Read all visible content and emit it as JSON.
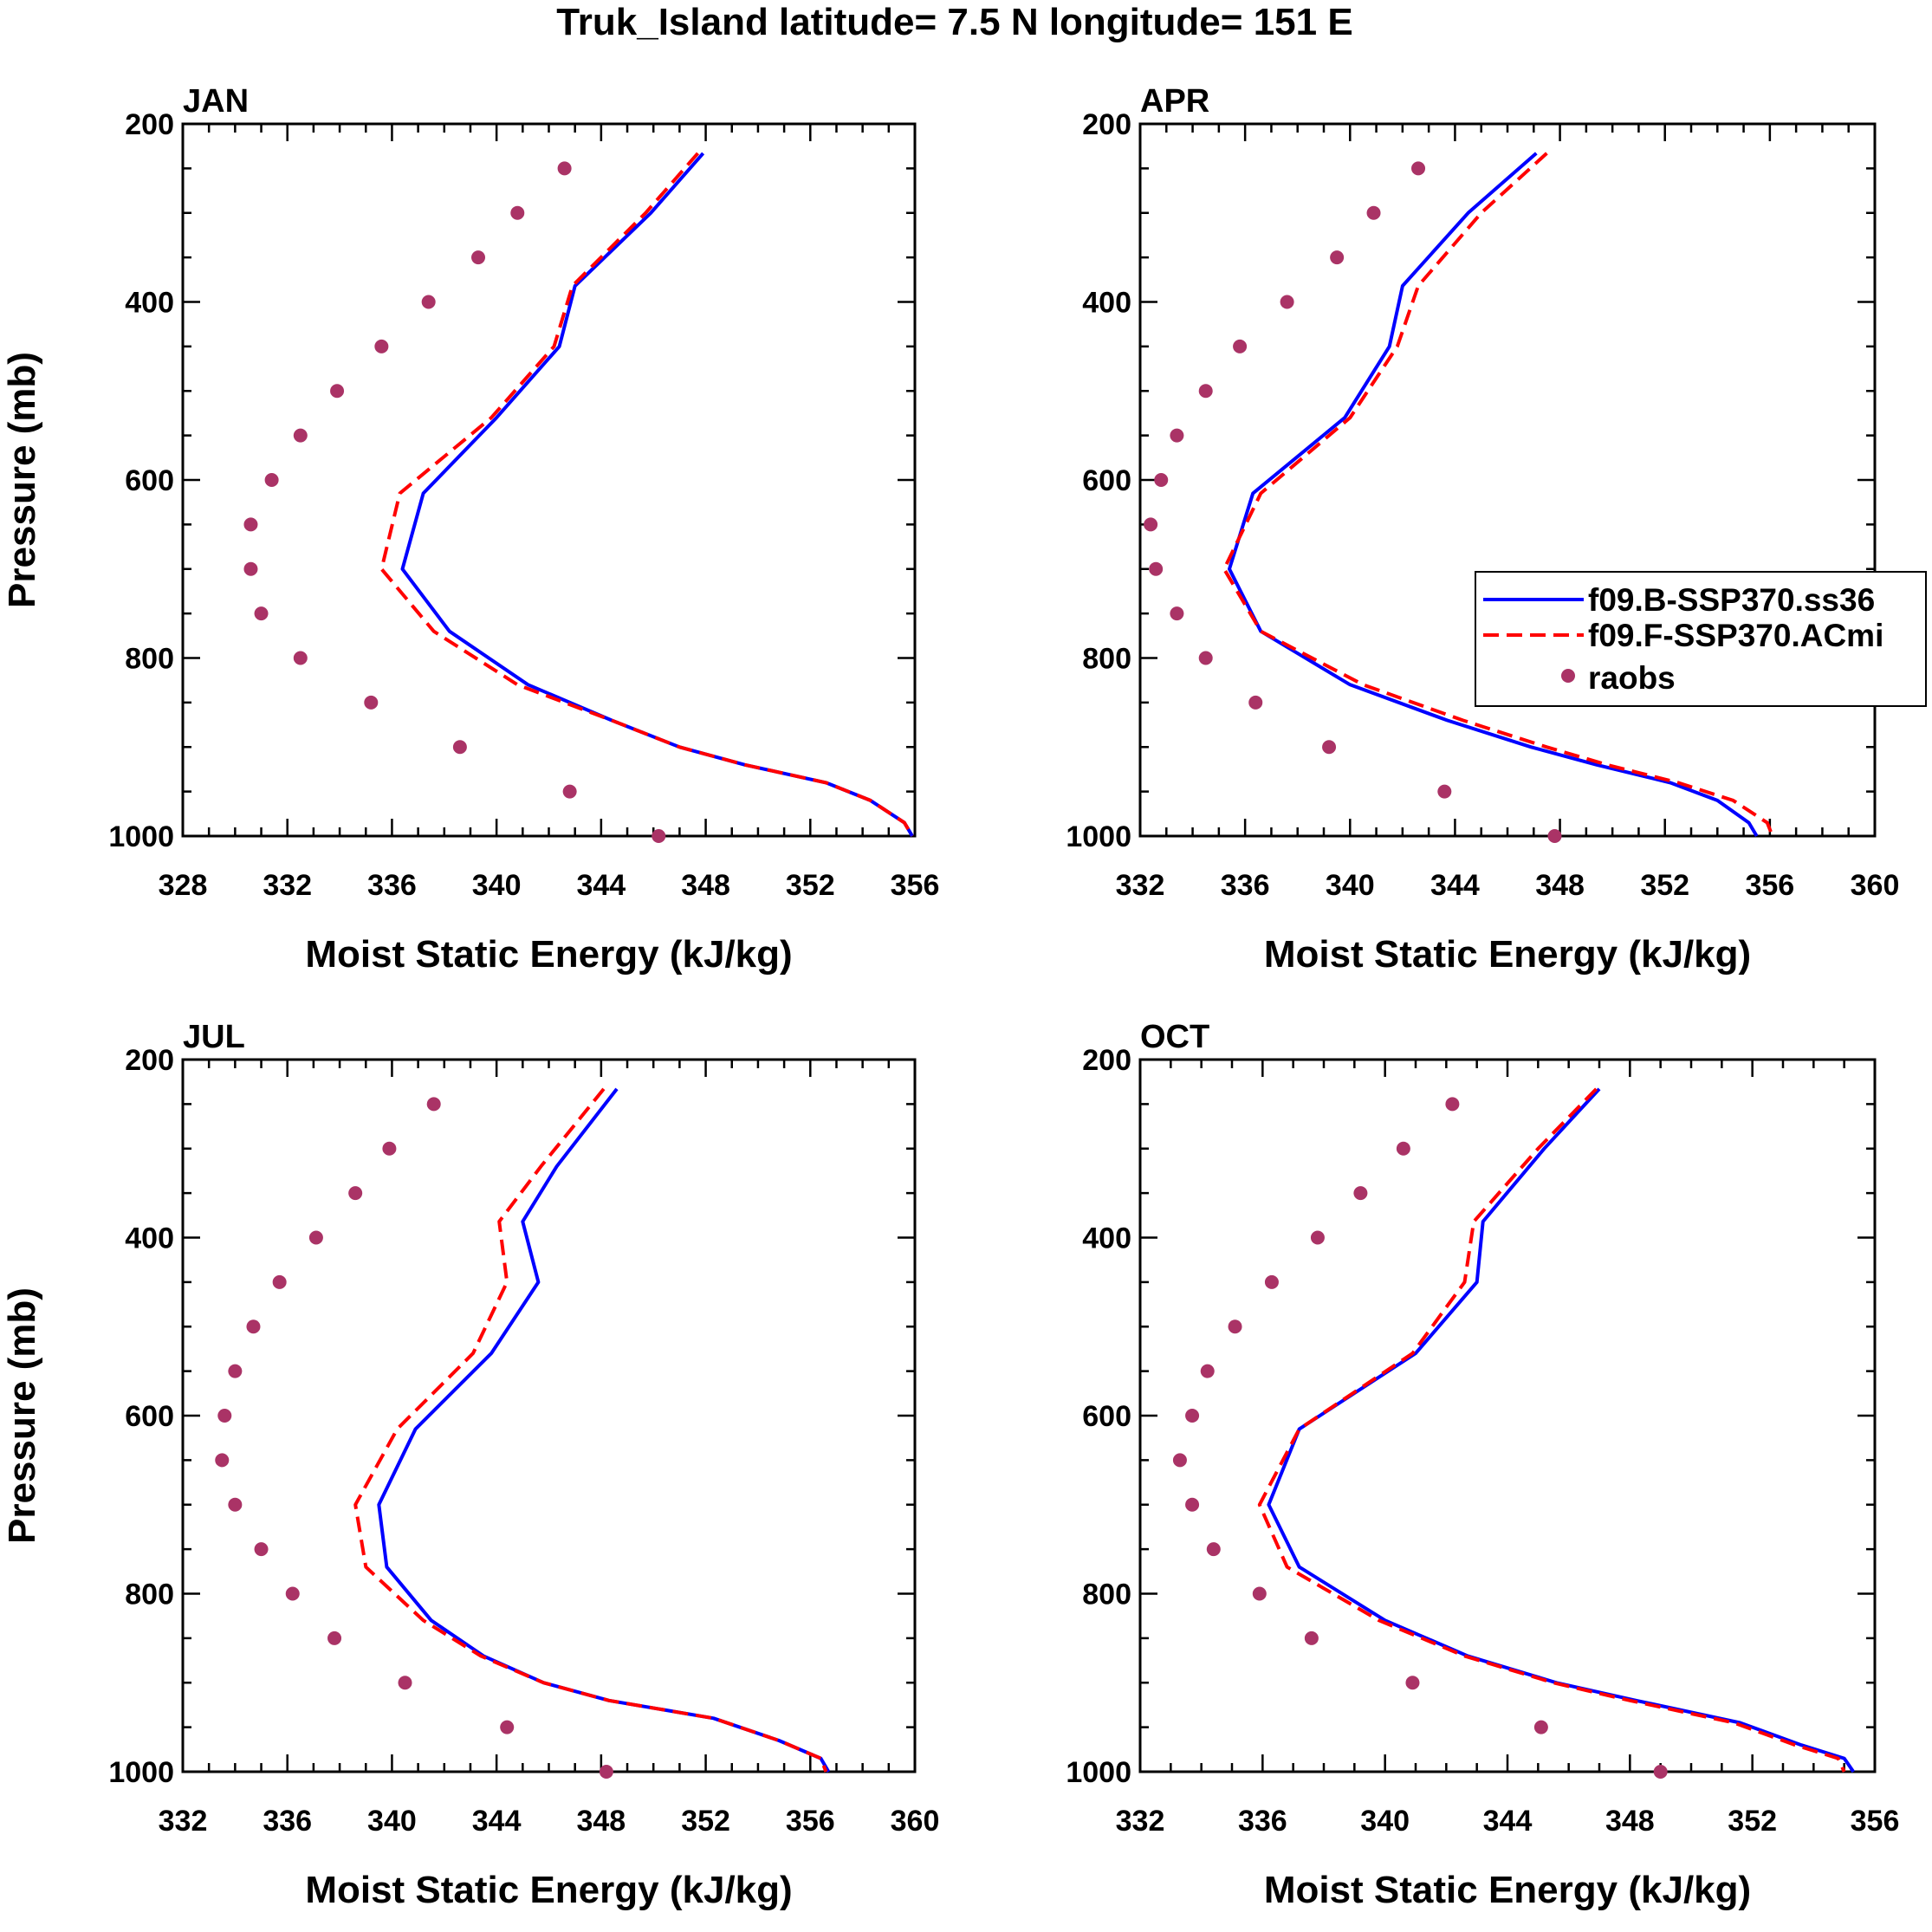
{
  "figure_title": "Truk_Island  latitude= 7.5 N longitude= 151 E",
  "colors": {
    "model_b": "#0000ff",
    "model_f": "#ff0000",
    "raobs": "#aa3366",
    "axis": "#000000"
  },
  "legend": {
    "entries": [
      {
        "label": "f09.B-SSP370.ss36",
        "style": "solid",
        "color": "#0000ff"
      },
      {
        "label": "f09.F-SSP370.ACmi",
        "style": "dashed",
        "color": "#ff0000"
      },
      {
        "label": "raobs",
        "style": "marker",
        "color": "#aa3366"
      }
    ]
  },
  "chart_data": [
    {
      "type": "line",
      "title": "JAN",
      "xlabel": "Moist Static Energy (kJ/kg)",
      "ylabel": "Pressure (mb)",
      "xlim": [
        328,
        356
      ],
      "ylim": [
        200,
        1000
      ],
      "xticks": [
        328,
        332,
        336,
        340,
        344,
        348,
        352,
        356
      ],
      "yticks": [
        200,
        400,
        600,
        800,
        1000
      ],
      "y_inverted": true,
      "series": [
        {
          "name": "f09.B-SSP370.ss36",
          "style": "solid",
          "y": [
            233,
            300,
            382,
            450,
            530,
            615,
            700,
            770,
            830,
            870,
            900,
            920,
            940,
            960,
            985,
            1000
          ],
          "x": [
            347.9,
            345.9,
            343.0,
            342.4,
            340.0,
            337.2,
            336.4,
            338.2,
            341.2,
            344.4,
            347.0,
            349.5,
            352.6,
            354.3,
            355.6,
            355.9
          ]
        },
        {
          "name": "f09.F-SSP370.ACmi",
          "style": "dashed",
          "y": [
            233,
            300,
            382,
            450,
            530,
            615,
            700,
            770,
            830,
            870,
            900,
            920,
            940,
            960,
            985,
            1000
          ],
          "x": [
            347.7,
            345.7,
            342.9,
            342.2,
            339.8,
            336.3,
            335.6,
            337.6,
            340.8,
            344.4,
            347.0,
            349.5,
            352.6,
            354.3,
            355.6,
            355.9
          ]
        },
        {
          "name": "raobs",
          "style": "marker",
          "y": [
            250,
            300,
            350,
            400,
            450,
            500,
            550,
            600,
            650,
            700,
            750,
            800,
            850,
            900,
            950,
            1000
          ],
          "x": [
            342.6,
            340.8,
            339.3,
            337.4,
            335.6,
            333.9,
            332.5,
            331.4,
            330.6,
            330.6,
            331.0,
            332.5,
            335.2,
            338.6,
            342.8,
            346.2
          ]
        }
      ]
    },
    {
      "type": "line",
      "title": "APR",
      "xlabel": "Moist Static Energy (kJ/kg)",
      "ylabel": "",
      "xlim": [
        332,
        360
      ],
      "ylim": [
        200,
        1000
      ],
      "xticks": [
        332,
        336,
        340,
        344,
        348,
        352,
        356,
        360
      ],
      "yticks": [
        200,
        400,
        600,
        800,
        1000
      ],
      "y_inverted": true,
      "series": [
        {
          "name": "f09.B-SSP370.ss36",
          "style": "solid",
          "y": [
            233,
            300,
            382,
            450,
            530,
            615,
            700,
            770,
            830,
            870,
            900,
            920,
            940,
            960,
            985,
            1000
          ],
          "x": [
            347.1,
            344.5,
            342.0,
            341.5,
            339.8,
            336.3,
            335.4,
            336.6,
            340.0,
            343.7,
            346.9,
            349.4,
            352.2,
            354.0,
            355.2,
            355.5
          ]
        },
        {
          "name": "f09.F-SSP370.ACmi",
          "style": "dashed",
          "y": [
            233,
            300,
            382,
            450,
            530,
            615,
            700,
            770,
            830,
            870,
            900,
            920,
            940,
            960,
            985,
            1000
          ],
          "x": [
            347.5,
            345.0,
            342.6,
            341.8,
            340.0,
            336.6,
            335.2,
            336.6,
            340.5,
            344.3,
            347.5,
            349.8,
            352.5,
            354.6,
            355.9,
            356.1
          ]
        },
        {
          "name": "raobs",
          "style": "marker",
          "y": [
            250,
            300,
            350,
            400,
            450,
            500,
            550,
            600,
            650,
            700,
            750,
            800,
            850,
            900,
            950,
            1000
          ],
          "x": [
            342.6,
            340.9,
            339.5,
            337.6,
            335.8,
            334.5,
            333.4,
            332.8,
            332.4,
            332.6,
            333.4,
            334.5,
            336.4,
            339.2,
            343.6,
            347.8
          ]
        }
      ]
    },
    {
      "type": "line",
      "title": "JUL",
      "xlabel": "Moist Static Energy (kJ/kg)",
      "ylabel": "Pressure (mb)",
      "xlim": [
        332,
        360
      ],
      "ylim": [
        200,
        1000
      ],
      "xticks": [
        332,
        336,
        340,
        344,
        348,
        352,
        356,
        360
      ],
      "yticks": [
        200,
        400,
        600,
        800,
        1000
      ],
      "y_inverted": true,
      "series": [
        {
          "name": "f09.B-SSP370.ss36",
          "style": "solid",
          "y": [
            233,
            320,
            382,
            450,
            530,
            615,
            700,
            770,
            830,
            870,
            900,
            920,
            940,
            965,
            985,
            1000
          ],
          "x": [
            348.6,
            346.3,
            345.0,
            345.6,
            343.8,
            340.9,
            339.5,
            339.8,
            341.5,
            343.5,
            345.8,
            348.3,
            352.3,
            354.8,
            356.4,
            356.7
          ]
        },
        {
          "name": "f09.F-SSP370.ACmi",
          "style": "dashed",
          "y": [
            233,
            320,
            382,
            450,
            530,
            615,
            700,
            770,
            830,
            870,
            900,
            920,
            940,
            965,
            985,
            1000
          ],
          "x": [
            348.1,
            345.7,
            344.1,
            344.4,
            343.1,
            340.2,
            338.6,
            339.0,
            341.2,
            343.4,
            345.8,
            348.3,
            352.3,
            354.8,
            356.4,
            356.6
          ]
        },
        {
          "name": "raobs",
          "style": "marker",
          "y": [
            250,
            300,
            350,
            400,
            450,
            500,
            550,
            600,
            650,
            700,
            750,
            800,
            850,
            900,
            950,
            1000
          ],
          "x": [
            341.6,
            339.9,
            338.6,
            337.1,
            335.7,
            334.7,
            334.0,
            333.6,
            333.5,
            334.0,
            335.0,
            336.2,
            337.8,
            340.5,
            344.4,
            348.2
          ]
        }
      ]
    },
    {
      "type": "line",
      "title": "OCT",
      "xlabel": "Moist Static Energy (kJ/kg)",
      "ylabel": "",
      "xlim": [
        332,
        356
      ],
      "ylim": [
        200,
        1000
      ],
      "xticks": [
        332,
        336,
        340,
        344,
        348,
        352,
        356
      ],
      "yticks": [
        200,
        400,
        600,
        800,
        1000
      ],
      "y_inverted": true,
      "series": [
        {
          "name": "f09.B-SSP370.ss36",
          "style": "solid",
          "y": [
            233,
            300,
            382,
            450,
            530,
            615,
            700,
            770,
            830,
            870,
            900,
            920,
            945,
            970,
            985,
            1000
          ],
          "x": [
            347.0,
            345.2,
            343.2,
            343.0,
            341.0,
            337.2,
            336.2,
            337.2,
            340.0,
            342.7,
            345.6,
            348.2,
            351.6,
            353.6,
            355.0,
            355.3
          ]
        },
        {
          "name": "f09.F-SSP370.ACmi",
          "style": "dashed",
          "y": [
            233,
            300,
            382,
            450,
            530,
            615,
            700,
            770,
            830,
            870,
            900,
            920,
            945,
            970,
            985,
            1000
          ],
          "x": [
            346.9,
            345.0,
            342.9,
            342.6,
            340.9,
            337.2,
            335.9,
            336.8,
            339.8,
            342.6,
            345.5,
            348.0,
            351.4,
            353.4,
            354.8,
            355.0
          ]
        },
        {
          "name": "raobs",
          "style": "marker",
          "y": [
            250,
            300,
            350,
            400,
            450,
            500,
            550,
            600,
            650,
            700,
            750,
            800,
            850,
            900,
            950,
            1000
          ],
          "x": [
            342.2,
            340.6,
            339.2,
            337.8,
            336.3,
            335.1,
            334.2,
            333.7,
            333.3,
            333.7,
            334.4,
            335.9,
            337.6,
            340.9,
            345.1,
            349.0
          ]
        }
      ]
    }
  ]
}
